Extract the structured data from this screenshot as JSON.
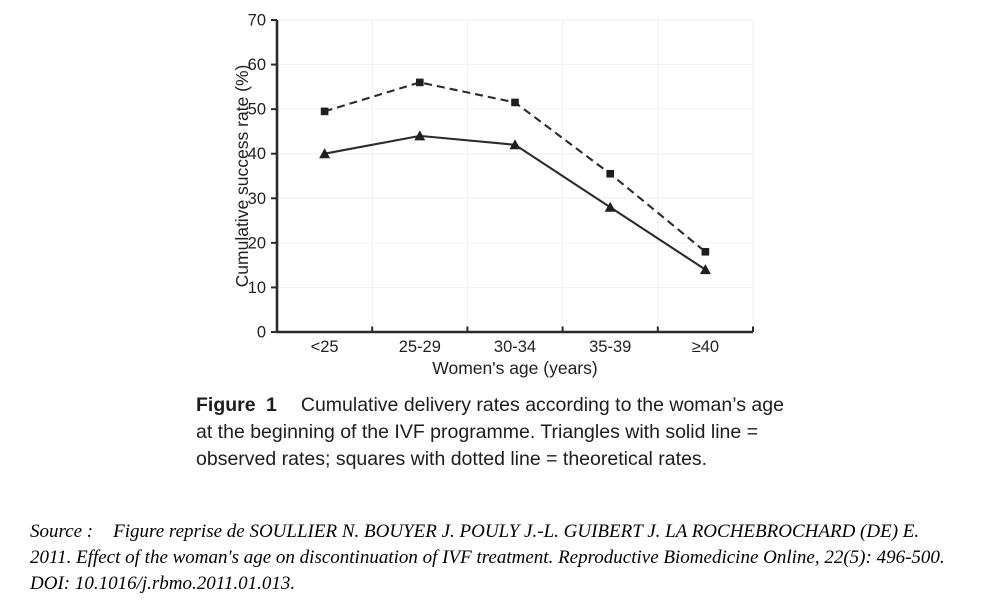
{
  "chart_data": {
    "type": "line",
    "title": "",
    "xlabel": "Women's age (years)",
    "ylabel": "Cumulative success rate (%)",
    "categories": [
      "<25",
      "25-29",
      "30-34",
      "35-39",
      "≥40"
    ],
    "series": [
      {
        "name": "observed rates",
        "marker": "triangle",
        "line_style": "solid",
        "values": [
          40,
          44,
          42,
          28,
          14
        ]
      },
      {
        "name": "theoretical rates",
        "marker": "square",
        "line_style": "dashed",
        "values": [
          49.5,
          56,
          51.5,
          35.5,
          18
        ]
      }
    ],
    "ylim": [
      0,
      70
    ],
    "yticks": [
      0,
      10,
      20,
      30,
      40,
      50,
      60,
      70
    ],
    "grid": "faint",
    "legend_position": "none",
    "line_color": "#2b2b2b",
    "grid_color": "#f0f0f0",
    "text_color": "#1f1f1f"
  },
  "caption": {
    "label": "Figure 1",
    "text": "Cumulative delivery rates according to the woman’s age at the beginning of the IVF programme. Triangles with solid line = observed rates; squares with dotted line = theoretical rates."
  },
  "source": {
    "label": "Source :",
    "text": "Figure reprise de SOULLIER N. BOUYER J. POULY J.-L. GUIBERT J. LA ROCHEBROCHARD (DE) E. 2011. Effect of the woman's age on discontinuation of IVF treatment. Reproductive Biomedicine Online, 22(5): 496-500. DOI: 10.1016/j.rbmo.2011.01.013."
  }
}
